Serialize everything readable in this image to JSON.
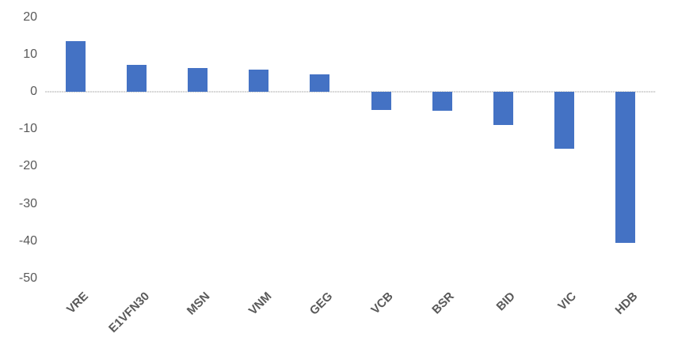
{
  "chart_data": {
    "type": "bar",
    "title": "",
    "xlabel": "",
    "ylabel": "",
    "categories": [
      "VRE",
      "E1VFN30",
      "MSN",
      "VNM",
      "GEG",
      "VCB",
      "BSR",
      "BID",
      "VIC",
      "HDB"
    ],
    "values": [
      13.6,
      7.3,
      6.4,
      6.0,
      4.6,
      -4.9,
      -5.1,
      -8.9,
      -15.2,
      -40.4
    ],
    "ylim": [
      -50,
      20
    ],
    "yticks": [
      20,
      10,
      0,
      -10,
      -20,
      -30,
      -40,
      -50
    ],
    "grid": false,
    "legend": "none",
    "colors": {
      "bar": "#4472C4",
      "axis_line": "#D9D9D9",
      "tick_label": "#595959"
    }
  }
}
